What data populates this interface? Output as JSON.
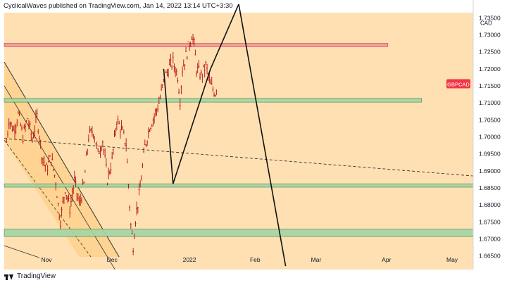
{
  "header": {
    "publisher_line": "CyclicalWaves published on TradingView.com, Jan 14, 2022 13:14 UTC+3:30"
  },
  "footer": {
    "brand": "TradingView"
  },
  "colors": {
    "background": "#ffe0b2",
    "price_bars": "#b71c1c",
    "zone_green": "#a5d6a7",
    "zone_red": "#ef9a9a",
    "channel": "#ffcc80",
    "label_bg": "#f23645"
  },
  "chart_data": {
    "type": "ohlc",
    "symbol": "GBPCAD",
    "currency": "CAD",
    "y_ticks": [
      "1.73500",
      "1.73000",
      "1.72500",
      "1.72000",
      "1.71500",
      "1.71000",
      "1.70500",
      "1.70000",
      "1.69500",
      "1.69000",
      "1.68500",
      "1.68000",
      "1.67500",
      "1.67000",
      "1.66500"
    ],
    "x_labels": [
      "Nov",
      "Dec",
      "2022",
      "Feb",
      "Mar",
      "Apr",
      "May"
    ],
    "ylim": [
      1.661,
      1.7365
    ],
    "last_price_label": "GBPCAD",
    "zones": [
      {
        "name": "resistance",
        "color": "red",
        "y_top": 1.7275,
        "y_bottom": 1.7265
      },
      {
        "name": "support-1",
        "color": "green",
        "y_top": 1.7113,
        "y_bottom": 1.7102
      },
      {
        "name": "support-2",
        "color": "green",
        "y_top": 1.6862,
        "y_bottom": 1.6852
      },
      {
        "name": "support-3",
        "color": "green",
        "y_top": 1.6729,
        "y_bottom": 1.6707
      }
    ],
    "price_path": [
      [
        0.005,
        1.6985
      ],
      [
        0.01,
        1.705
      ],
      [
        0.02,
        1.702
      ],
      [
        0.03,
        1.7065
      ],
      [
        0.04,
        1.7
      ],
      [
        0.05,
        1.7055
      ],
      [
        0.06,
        1.699
      ],
      [
        0.07,
        1.706
      ],
      [
        0.08,
        1.695
      ],
      [
        0.09,
        1.6905
      ],
      [
        0.1,
        1.694
      ],
      [
        0.11,
        1.687
      ],
      [
        0.115,
        1.68
      ],
      [
        0.12,
        1.6755
      ],
      [
        0.13,
        1.685
      ],
      [
        0.14,
        1.679
      ],
      [
        0.15,
        1.687
      ],
      [
        0.16,
        1.68
      ],
      [
        0.17,
        1.686
      ],
      [
        0.18,
        1.7
      ],
      [
        0.19,
        1.702
      ],
      [
        0.2,
        1.695
      ],
      [
        0.21,
        1.699
      ],
      [
        0.22,
        1.6875
      ],
      [
        0.23,
        1.693
      ],
      [
        0.24,
        1.705
      ],
      [
        0.25,
        1.702
      ],
      [
        0.26,
        1.698
      ],
      [
        0.27,
        1.674
      ],
      [
        0.275,
        1.668
      ],
      [
        0.28,
        1.676
      ],
      [
        0.29,
        1.685
      ],
      [
        0.3,
        1.697
      ],
      [
        0.31,
        1.703
      ],
      [
        0.32,
        1.706
      ],
      [
        0.33,
        1.71
      ],
      [
        0.34,
        1.716
      ],
      [
        0.35,
        1.72
      ],
      [
        0.36,
        1.722
      ],
      [
        0.37,
        1.718
      ],
      [
        0.375,
        1.711
      ],
      [
        0.38,
        1.72
      ],
      [
        0.39,
        1.725
      ],
      [
        0.4,
        1.73
      ],
      [
        0.405,
        1.727
      ],
      [
        0.41,
        1.72
      ],
      [
        0.42,
        1.718
      ],
      [
        0.43,
        1.721
      ],
      [
        0.44,
        1.715
      ],
      [
        0.45,
        1.713
      ],
      [
        0.455,
        1.716
      ]
    ]
  }
}
